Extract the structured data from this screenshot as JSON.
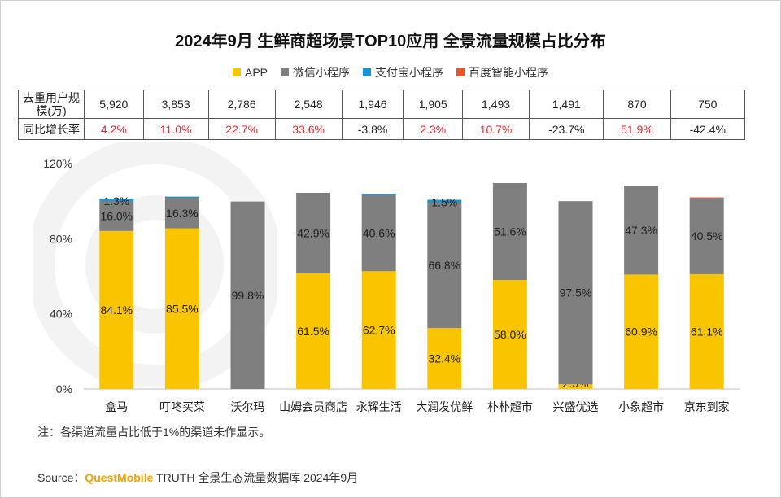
{
  "title": "2024年9月 生鲜商超场景TOP10应用 全景流量规模占比分布",
  "legend": [
    {
      "label": "APP",
      "color": "#f9c400"
    },
    {
      "label": "微信小程序",
      "color": "#7f7f7f"
    },
    {
      "label": "支付宝小程序",
      "color": "#1a93d4"
    },
    {
      "label": "百度智能小程序",
      "color": "#e8552b"
    }
  ],
  "table": {
    "row1_header": "去重用户规模(万)",
    "row2_header": "同比增长率",
    "users": [
      "5,920",
      "3,853",
      "2,786",
      "2,548",
      "1,946",
      "1,905",
      "1,493",
      "1,491",
      "870",
      "750"
    ],
    "growth": [
      "4.2%",
      "11.0%",
      "22.7%",
      "33.6%",
      "-3.8%",
      "2.3%",
      "10.7%",
      "-23.7%",
      "51.9%",
      "-42.4%"
    ]
  },
  "chart_data": {
    "type": "bar",
    "stacked": true,
    "categories": [
      "盒马",
      "叮咚买菜",
      "沃尔玛",
      "山姆会员商店",
      "永辉生活",
      "大润发优鲜",
      "朴朴超市",
      "兴盛优选",
      "小象超市",
      "京东到家"
    ],
    "series": [
      {
        "name": "APP",
        "color": "#f9c400",
        "values": [
          84.1,
          85.5,
          0,
          61.5,
          62.7,
          32.4,
          58.0,
          2.5,
          60.9,
          61.1
        ],
        "labels": [
          "84.1%",
          "85.5%",
          "",
          "61.5%",
          "62.7%",
          "32.4%",
          "58.0%",
          "2.5%",
          "60.9%",
          "61.1%"
        ]
      },
      {
        "name": "微信小程序",
        "color": "#7f7f7f",
        "values": [
          16.0,
          16.3,
          99.8,
          42.9,
          40.6,
          66.8,
          51.6,
          97.5,
          47.3,
          40.5
        ],
        "labels": [
          "16.0%",
          "16.3%",
          "99.8%",
          "42.9%",
          "40.6%",
          "66.8%",
          "51.6%",
          "97.5%",
          "47.3%",
          "40.5%"
        ]
      },
      {
        "name": "支付宝小程序",
        "color": "#1a93d4",
        "values": [
          1.3,
          0.6,
          0,
          0,
          0.6,
          1.5,
          0,
          0,
          0,
          0
        ],
        "labels": [
          "1.3%",
          "",
          "",
          "",
          "",
          "1.5%",
          "",
          "",
          "",
          ""
        ]
      },
      {
        "name": "百度智能小程序",
        "color": "#e8552b",
        "values": [
          0,
          0,
          0,
          0,
          0,
          0,
          0,
          0,
          0,
          0.4
        ],
        "labels": [
          "",
          "",
          "",
          "",
          "",
          "",
          "",
          "",
          "",
          ""
        ]
      }
    ],
    "yticks": [
      "0%",
      "40%",
      "80%",
      "120%"
    ],
    "ylim": [
      0,
      120
    ]
  },
  "note": "注：各渠道流量占比低于1%的渠道未作显示。",
  "source": {
    "prefix": "Source：",
    "brand": "QuestMobile",
    "suffix": " TRUTH 全景生态流量数据库 2024年9月"
  }
}
